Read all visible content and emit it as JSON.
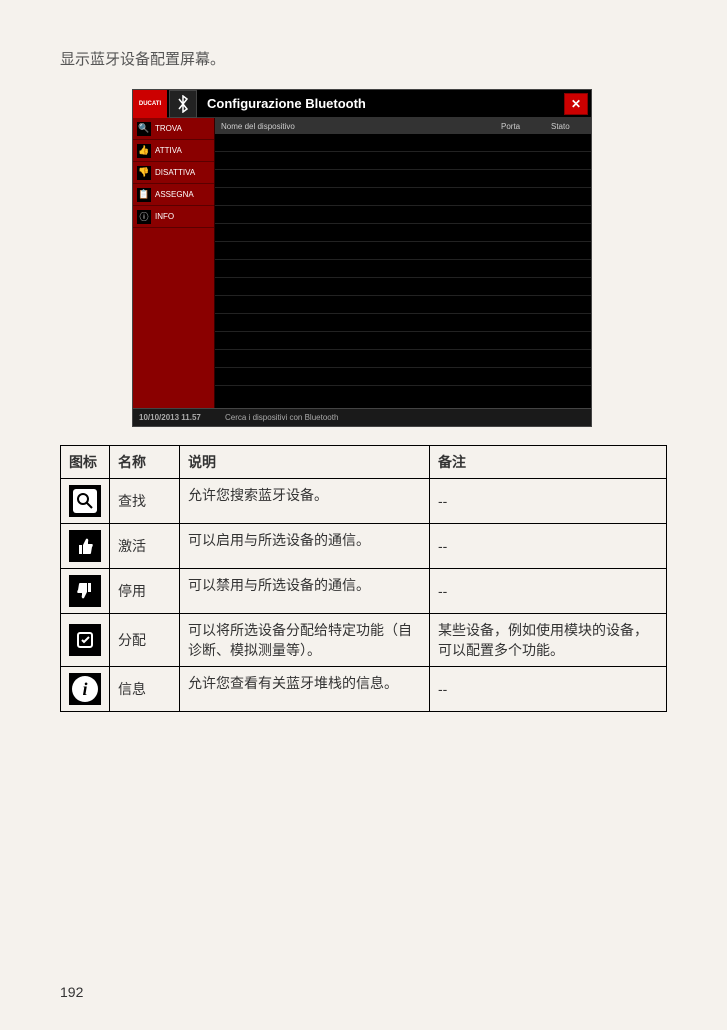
{
  "intro": "显示蓝牙设备配置屏幕。",
  "bt": {
    "logo_text": "DUCATI",
    "title": "Configurazione Bluetooth",
    "close_glyph": "✕",
    "bt_glyph": "⋆",
    "sidebar": [
      {
        "icon": "🔍",
        "label": "TROVA"
      },
      {
        "icon": "👍",
        "label": "ATTIVA"
      },
      {
        "icon": "👎",
        "label": "DISATTIVA"
      },
      {
        "icon": "📋",
        "label": "ASSEGNA"
      },
      {
        "icon": "ⓘ",
        "label": "INFO"
      }
    ],
    "grid_headers": {
      "name": "Nome del dispositivo",
      "porta": "Porta",
      "stato": "Stato"
    },
    "grid_row_count": 14,
    "status_time": "10/10/2013 11.57",
    "status_msg": "Cerca i dispositivi con Bluetooth"
  },
  "desc": {
    "headers": {
      "icon": "图标",
      "name": "名称",
      "desc": "说明",
      "note": "备注"
    },
    "rows": [
      {
        "icon_type": "magnify",
        "name": "查找",
        "desc": "允许您搜索蓝牙设备。",
        "note": "--"
      },
      {
        "icon_type": "thumbs-up",
        "name": "激活",
        "desc": "可以启用与所选设备的通信。",
        "note": "--"
      },
      {
        "icon_type": "thumbs-down",
        "name": "停用",
        "desc": "可以禁用与所选设备的通信。",
        "note": "--"
      },
      {
        "icon_type": "assign",
        "name": "分配",
        "desc": "可以将所选设备分配给特定功能（自诊断、模拟测量等）。",
        "note": "某些设备，例如使用模块的设备，可以配置多个功能。"
      },
      {
        "icon_type": "info",
        "name": "信息",
        "desc": "允许您查看有关蓝牙堆栈的信息。",
        "note": "--"
      }
    ]
  },
  "page_number": "192"
}
